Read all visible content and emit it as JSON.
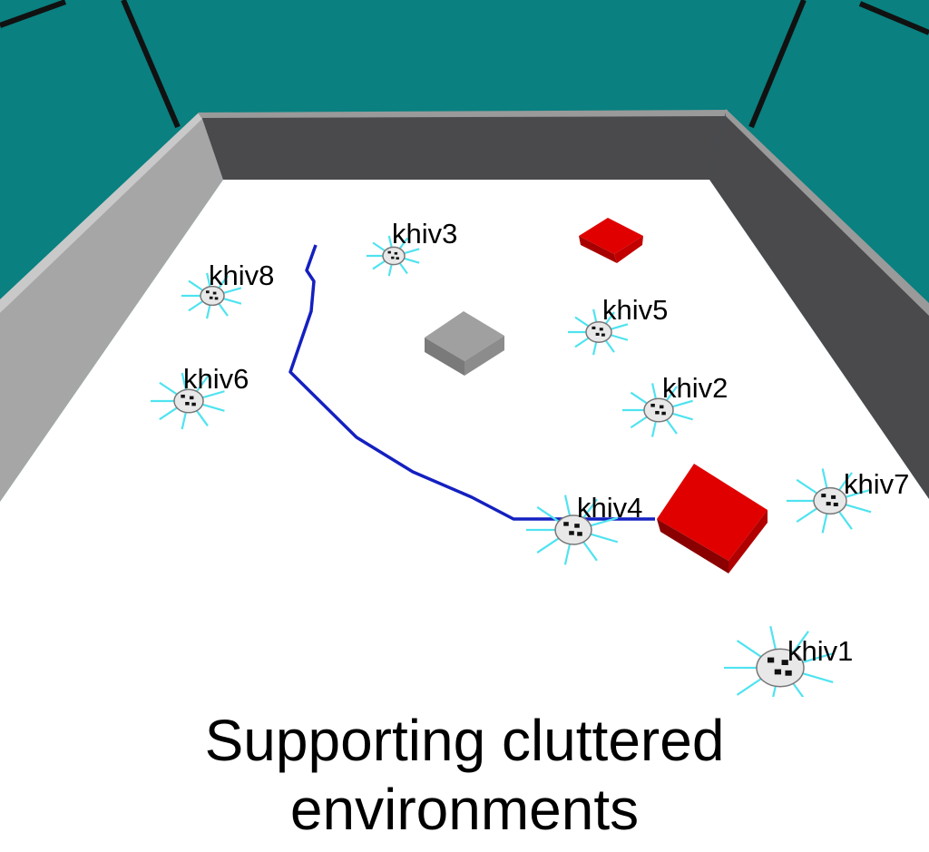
{
  "caption": {
    "line1": "Supporting cluttered",
    "line2": "environments"
  },
  "colors": {
    "sky": "#0a8080",
    "floor": "#ffffff",
    "wall_back": "#4a494c",
    "wall_left": "#a6a6a6",
    "wall_top_edge": "#8a8a8a",
    "path": "#1420c0",
    "sensor_rays": "#4fe3f0",
    "obstacle_red": "#e00000",
    "obstacle_gray": "#9a9a9a"
  },
  "scene": {
    "robots": [
      {
        "name": "khiv1",
        "icon": "robot-icon"
      },
      {
        "name": "khiv2",
        "icon": "robot-icon"
      },
      {
        "name": "khiv3",
        "icon": "robot-icon"
      },
      {
        "name": "khiv4",
        "icon": "robot-icon"
      },
      {
        "name": "khiv5",
        "icon": "robot-icon"
      },
      {
        "name": "khiv6",
        "icon": "robot-icon"
      },
      {
        "name": "khiv7",
        "icon": "robot-icon"
      },
      {
        "name": "khiv8",
        "icon": "robot-icon"
      }
    ],
    "obstacles": [
      {
        "kind": "red-box-small"
      },
      {
        "kind": "red-box-large"
      },
      {
        "kind": "gray-box"
      }
    ]
  }
}
